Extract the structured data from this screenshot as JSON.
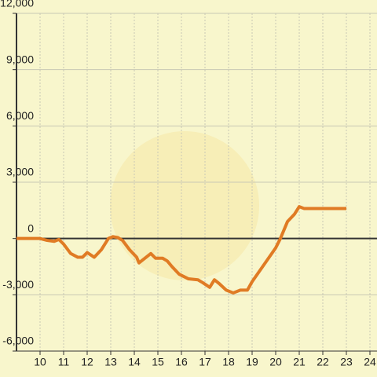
{
  "chart_data": {
    "type": "line",
    "x": [
      9,
      9.5,
      10,
      10.3,
      10.6,
      10.8,
      11,
      11.3,
      11.6,
      11.8,
      12,
      12.3,
      12.6,
      12.9,
      13.1,
      13.3,
      13.5,
      13.8,
      14.1,
      14.2,
      14.5,
      14.7,
      14.9,
      15.2,
      15.4,
      15.6,
      15.9,
      16.3,
      16.7,
      16.9,
      17.2,
      17.4,
      17.6,
      17.9,
      18.2,
      18.5,
      18.8,
      19,
      19.5,
      20,
      20.2,
      20.5,
      20.8,
      21,
      21.2,
      22,
      23
    ],
    "series": [
      {
        "color": "#e07b24",
        "values": [
          0,
          0,
          0,
          -100,
          -150,
          -50,
          -300,
          -800,
          -1000,
          -1000,
          -750,
          -1000,
          -600,
          0,
          100,
          50,
          -100,
          -600,
          -1000,
          -1300,
          -1000,
          -800,
          -1050,
          -1050,
          -1200,
          -1500,
          -1900,
          -2150,
          -2200,
          -2350,
          -2600,
          -2200,
          -2400,
          -2750,
          -2900,
          -2750,
          -2750,
          -2300,
          -1400,
          -500,
          0,
          900,
          1300,
          1700,
          1600,
          1600,
          1600
        ]
      }
    ],
    "xlim": [
      9,
      24.3
    ],
    "xticks": [
      10,
      11,
      12,
      13,
      14,
      15,
      16,
      17,
      18,
      19,
      20,
      21,
      22,
      23,
      24
    ],
    "ylim": [
      -6000,
      12000
    ],
    "yticks": [
      {
        "value": -6000,
        "label": "-6,000"
      },
      {
        "value": -3000,
        "label": "-3,000"
      },
      0,
      {
        "value": 3000,
        "label": "3,000"
      },
      {
        "value": 6000,
        "label": "6,000"
      },
      {
        "value": 9000,
        "label": "9,000"
      },
      {
        "value": 12000,
        "label": "12,000"
      }
    ],
    "grid": true
  }
}
